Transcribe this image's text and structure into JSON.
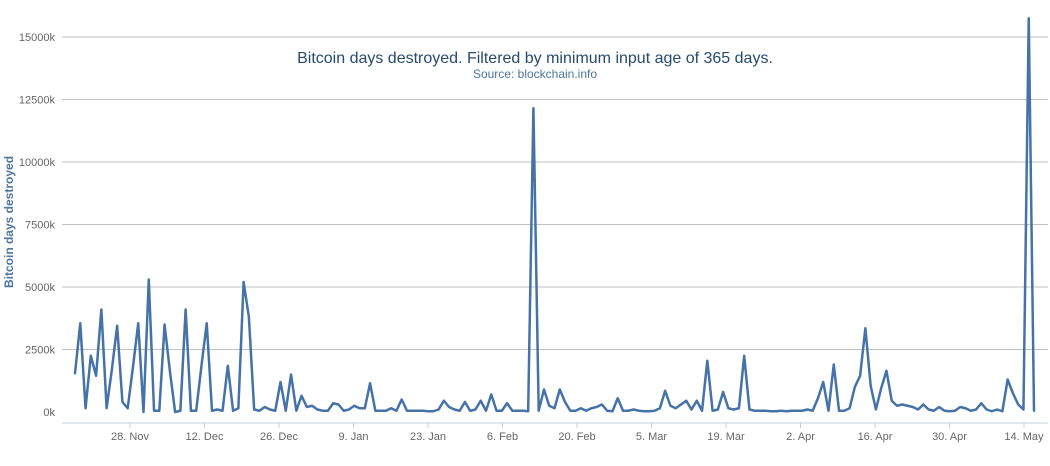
{
  "chart_data": {
    "type": "line",
    "title": "Bitcoin days destroyed. Filtered by minimum input age of 365 days.",
    "subtitle": "Source: blockchain.info",
    "xlabel": "",
    "ylabel": "Bitcoin days destroyed",
    "ylim": [
      0,
      16000
    ],
    "y_ticks": [
      "0k",
      "2500k",
      "5000k",
      "7500k",
      "10000k",
      "12500k",
      "15000k"
    ],
    "x_ticks": [
      "28. Nov",
      "12. Dec",
      "26. Dec",
      "9. Jan",
      "23. Jan",
      "6. Feb",
      "20. Feb",
      "5. Mar",
      "19. Mar",
      "2. Apr",
      "16. Apr",
      "30. Apr",
      "14. May"
    ],
    "grid": "horizontal",
    "legend": "none",
    "line_color": "#4572a7",
    "series": [
      {
        "values": [
          1550,
          3550,
          150,
          2250,
          1450,
          4100,
          150,
          1700,
          3450,
          400,
          150,
          1800,
          3550,
          0,
          5300,
          50,
          50,
          3500,
          1650,
          0,
          50,
          4100,
          50,
          50,
          1850,
          3550,
          50,
          100,
          50,
          1850,
          50,
          150,
          5200,
          3800,
          100,
          50,
          200,
          100,
          50,
          1200,
          50,
          1500,
          50,
          650,
          200,
          250,
          100,
          50,
          50,
          350,
          300,
          50,
          100,
          250,
          150,
          150,
          1150,
          50,
          50,
          50,
          150,
          50,
          500,
          50,
          50,
          50,
          50,
          30,
          30,
          100,
          450,
          200,
          100,
          50,
          400,
          50,
          100,
          450,
          50,
          700,
          50,
          50,
          350,
          50,
          50,
          50,
          30,
          12150,
          50,
          900,
          250,
          150,
          900,
          400,
          50,
          50,
          150,
          50,
          150,
          200,
          300,
          50,
          30,
          550,
          50,
          50,
          100,
          50,
          30,
          30,
          50,
          150,
          850,
          250,
          150,
          300,
          450,
          100,
          450,
          50,
          2050,
          50,
          100,
          800,
          150,
          100,
          150,
          2250,
          100,
          50,
          50,
          50,
          30,
          30,
          50,
          30,
          50,
          50,
          50,
          100,
          50,
          550,
          1200,
          50,
          1900,
          50,
          50,
          150,
          1000,
          1450,
          3350,
          1050,
          100,
          950,
          1650,
          450,
          250,
          300,
          250,
          200,
          100,
          300,
          100,
          50,
          200,
          50,
          30,
          50,
          200,
          150,
          50,
          100,
          350,
          100,
          30,
          100,
          30,
          1300,
          750,
          300,
          100,
          15750,
          50
        ]
      }
    ]
  }
}
